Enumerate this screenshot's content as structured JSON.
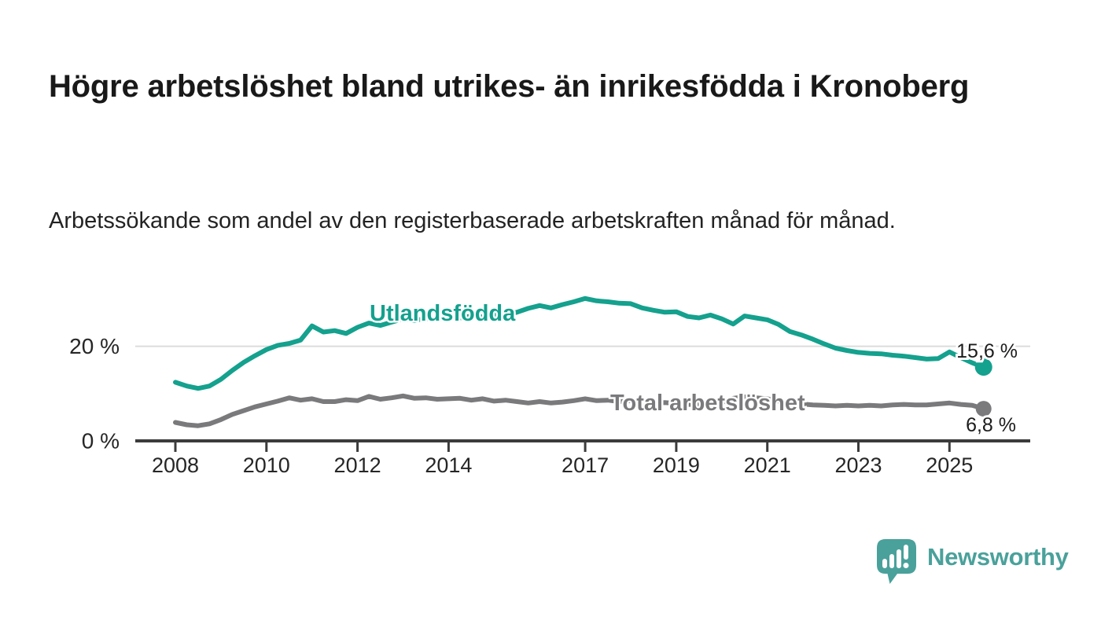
{
  "title": "Högre arbetslöshet bland utrikes- än inrikesfödda i Kronoberg",
  "subtitle": "Arbetssökande som andel av den registerbaserade arbetskraften månad för månad.",
  "branding": {
    "logo_text": "Newsworthy",
    "logo_color": "#4aa19b",
    "logo_icon": "bar-chart-speech-bubble"
  },
  "colors": {
    "foreign_born_line": "#14a18e",
    "total_line": "#7a7a7d",
    "grid_line": "#dcdcdc",
    "axis_line": "#3b3b3b",
    "label_text": "#1c1c1c"
  },
  "chart_data": {
    "type": "line",
    "title": "Högre arbetslöshet bland utrikes- än inrikesfödda i Kronoberg",
    "subtitle": "Arbetssökande som andel av den registerbaserade arbetskraften månad för månad.",
    "unit": "%",
    "grid": "horizontal, only at 20 %",
    "legend_position": "inline labels on lines",
    "x_axis": {
      "range": [
        2007.1,
        2026.8
      ],
      "tick_values": [
        2008,
        2010,
        2012,
        2014,
        2017,
        2019,
        2021,
        2023,
        2025
      ],
      "tick_labels": [
        "2008",
        "2010",
        "2012",
        "2014",
        "2017",
        "2019",
        "2021",
        "2023",
        "2025"
      ]
    },
    "y_axis": {
      "range": [
        0,
        32
      ],
      "ticks": [
        {
          "value": 0,
          "label": "0 %"
        },
        {
          "value": 20,
          "label": "20 %"
        }
      ]
    },
    "x": [
      2008.0,
      2008.25,
      2008.5,
      2008.75,
      2009.0,
      2009.25,
      2009.5,
      2009.75,
      2010.0,
      2010.25,
      2010.5,
      2010.75,
      2011.0,
      2011.25,
      2011.5,
      2011.75,
      2012.0,
      2012.25,
      2012.5,
      2012.75,
      2013.0,
      2013.25,
      2013.5,
      2013.75,
      2014.0,
      2014.25,
      2014.5,
      2014.75,
      2015.0,
      2015.25,
      2015.5,
      2015.75,
      2016.0,
      2016.25,
      2016.5,
      2016.75,
      2017.0,
      2017.25,
      2017.5,
      2017.75,
      2018.0,
      2018.25,
      2018.5,
      2018.75,
      2019.0,
      2019.25,
      2019.5,
      2019.75,
      2020.0,
      2020.25,
      2020.5,
      2020.75,
      2021.0,
      2021.25,
      2021.5,
      2021.75,
      2022.0,
      2022.25,
      2022.5,
      2022.75,
      2023.0,
      2023.25,
      2023.5,
      2023.75,
      2024.0,
      2024.25,
      2024.5,
      2024.75,
      2025.0,
      2025.25,
      2025.5,
      2025.75
    ],
    "series": [
      {
        "name": "Utlandsfödda",
        "color": "#14a18e",
        "end_label": "15,6 %",
        "end_value": 15.6,
        "values": [
          12.4,
          11.6,
          11.1,
          11.6,
          13.0,
          14.9,
          16.6,
          18.0,
          19.3,
          20.2,
          20.6,
          21.3,
          24.3,
          23.0,
          23.3,
          22.7,
          24.0,
          24.9,
          24.4,
          25.1,
          25.8,
          25.4,
          25.9,
          25.6,
          26.2,
          26.0,
          26.4,
          26.2,
          26.8,
          26.6,
          27.2,
          28.0,
          28.6,
          28.1,
          28.8,
          29.4,
          30.1,
          29.6,
          29.4,
          29.1,
          29.0,
          28.1,
          27.6,
          27.2,
          27.3,
          26.3,
          26.0,
          26.6,
          25.8,
          24.7,
          26.4,
          26.0,
          25.6,
          24.6,
          23.1,
          22.4,
          21.5,
          20.5,
          19.6,
          19.1,
          18.7,
          18.5,
          18.4,
          18.1,
          17.9,
          17.6,
          17.3,
          17.4,
          18.8,
          17.6,
          16.5,
          15.6
        ]
      },
      {
        "name": "Total arbetslöshet",
        "color": "#7a7a7d",
        "end_label": "6,8 %",
        "end_value": 6.8,
        "values": [
          3.9,
          3.4,
          3.2,
          3.6,
          4.5,
          5.6,
          6.4,
          7.2,
          7.8,
          8.4,
          9.1,
          8.6,
          8.9,
          8.3,
          8.3,
          8.7,
          8.5,
          9.4,
          8.8,
          9.1,
          9.5,
          9.0,
          9.1,
          8.8,
          8.9,
          9.0,
          8.6,
          8.9,
          8.4,
          8.6,
          8.3,
          8.0,
          8.3,
          8.0,
          8.2,
          8.5,
          8.9,
          8.5,
          8.6,
          8.3,
          8.5,
          8.2,
          8.0,
          8.1,
          7.9,
          7.7,
          7.7,
          7.9,
          8.1,
          9.0,
          9.3,
          9.1,
          8.9,
          8.4,
          8.0,
          7.8,
          7.6,
          7.5,
          7.4,
          7.5,
          7.4,
          7.5,
          7.4,
          7.6,
          7.7,
          7.6,
          7.6,
          7.8,
          8.0,
          7.7,
          7.5,
          6.8
        ]
      }
    ]
  }
}
